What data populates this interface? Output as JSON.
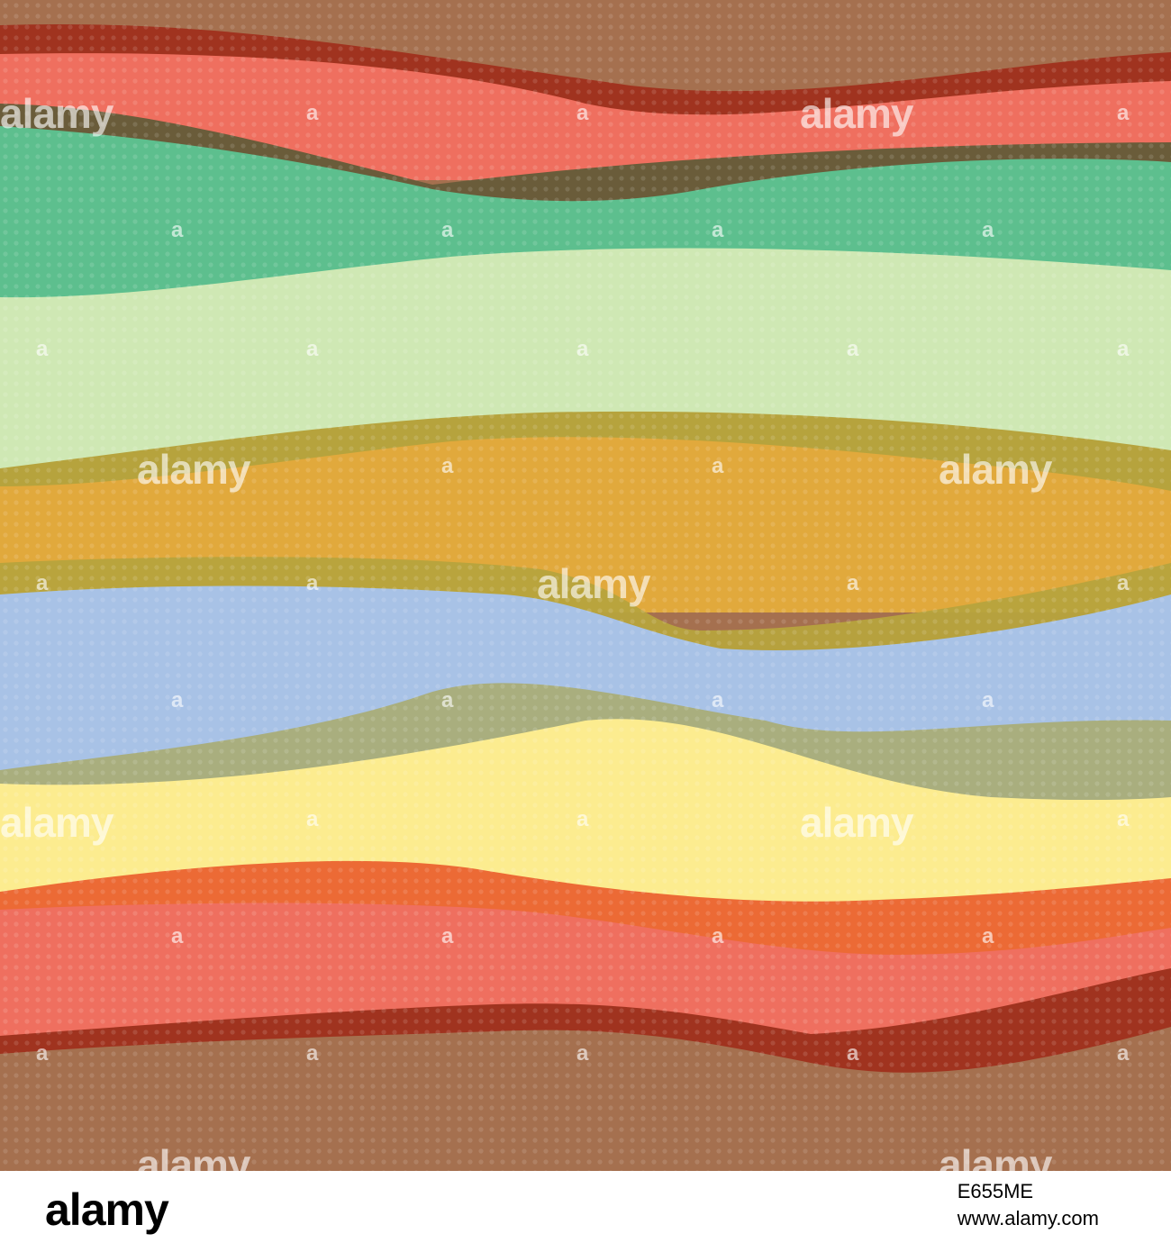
{
  "colors": {
    "brown": "#a5704f",
    "dark_red": "#a0331f",
    "salmon": "#ef6f5f",
    "teal": "#5dbf8e",
    "olive_dark": "#6a5c3a",
    "pale_green": "#cfe8b4",
    "olive": "#b6a33d",
    "mustard": "#e1a93c",
    "blue": "#a8c2e6",
    "sage": "#a9ae7e",
    "yellow": "#fcec8f",
    "orange": "#ec6a35"
  },
  "watermark": {
    "logo_text": "alamy",
    "mark_text": "a"
  },
  "footer": {
    "logo": "alamy",
    "image_id": "E655ME",
    "url": "www.alamy.com"
  }
}
